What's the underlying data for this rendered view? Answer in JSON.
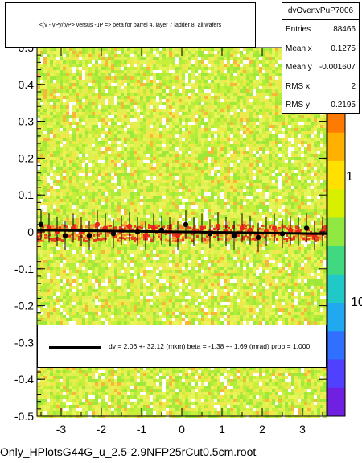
{
  "chart_data": {
    "type": "scatter",
    "title": "<(v - vPy/tvP> versus -uP => beta for barrel 4, layer 7 ladder 8, all wafers",
    "xlabel": "",
    "ylabel": "",
    "xlim": [
      -3.6,
      3.6
    ],
    "ylim": [
      -0.5,
      0.5
    ],
    "x_ticks": [
      "-3",
      "-2",
      "-1",
      "0",
      "1",
      "2",
      "3"
    ],
    "y_ticks": [
      "-0.5",
      "-0.4",
      "-0.3",
      "-0.2",
      "-0.1",
      "0",
      "0.1",
      "0.2",
      "0.3",
      "0.4"
    ],
    "y_top_partial_label": "0.5",
    "colorbar_ticks": [
      "1",
      "10"
    ],
    "colorbar_top_partial_label": "0",
    "profile_series": {
      "name": "profile",
      "x": [
        -3.5,
        -3.3,
        -3.1,
        -2.9,
        -2.7,
        -2.5,
        -2.3,
        -2.1,
        -1.9,
        -1.7,
        -1.5,
        -1.3,
        -1.1,
        -0.9,
        -0.7,
        -0.5,
        -0.3,
        -0.1,
        0.1,
        0.3,
        0.5,
        0.7,
        0.9,
        1.1,
        1.3,
        1.5,
        1.7,
        1.9,
        2.1,
        2.3,
        2.5,
        2.7,
        2.9,
        3.1,
        3.3,
        3.5
      ],
      "y": [
        0.02,
        0.01,
        0.0,
        -0.01,
        0.01,
        0.0,
        -0.01,
        0.02,
        0.01,
        -0.005,
        0.005,
        0.015,
        0.0,
        -0.01,
        0.01,
        0.005,
        0.0,
        -0.01,
        0.02,
        0.0,
        0.01,
        -0.005,
        0.015,
        0.0,
        -0.01,
        0.01,
        0.005,
        -0.015,
        0.0,
        0.01,
        -0.005,
        0.005,
        0.0,
        0.01,
        -0.01,
        0.0
      ]
    },
    "fit_line": {
      "slope": -0.00138,
      "intercept": 0.0
    },
    "stats": {
      "name": "dvOvertvPuP7006",
      "rows": [
        {
          "label": "Entries",
          "value": "88466"
        },
        {
          "label": "Mean x",
          "value": "0.1275"
        },
        {
          "label": "Mean y",
          "value": "-0.001607"
        },
        {
          "label": "RMS x",
          "value": "2"
        },
        {
          "label": "RMS y",
          "value": "0.2195"
        }
      ]
    },
    "fit_text": "dv =    2.06 +- 32.12 (mkm) beta =   -1.38 +-  1.69 (mrad) prob = 1.000"
  },
  "footer_text": "Only_HPlotsG44G_u_2.5-2.9NFP25rCut0.5cm.root"
}
